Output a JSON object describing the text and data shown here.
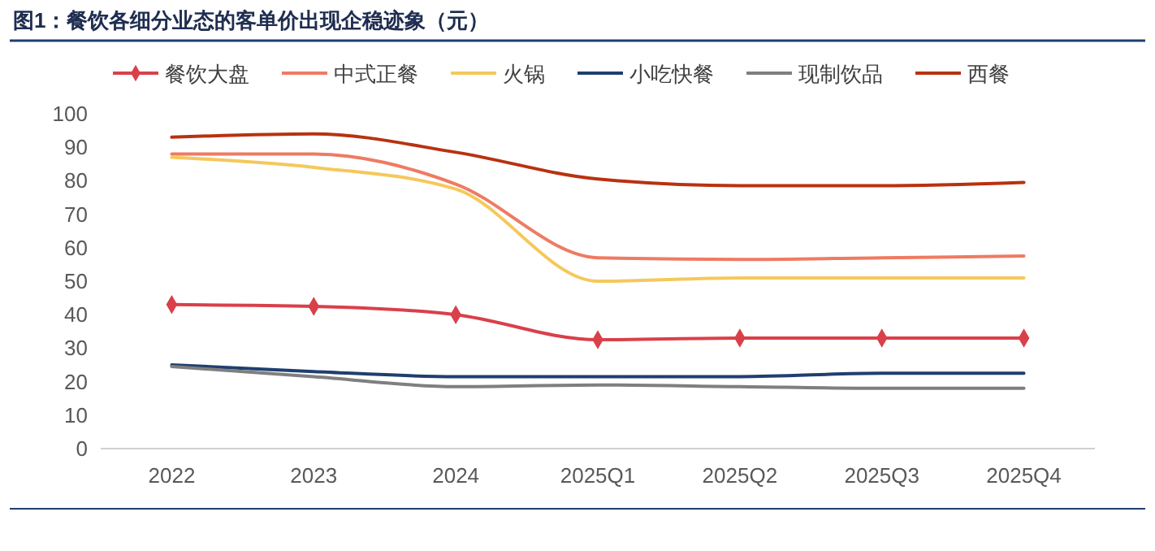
{
  "chart_data": {
    "type": "line",
    "title": "图1：餐饮各细分业态的客单价出现企稳迹象（元）",
    "categories": [
      "2022",
      "2023",
      "2024",
      "2025Q1",
      "2025Q2",
      "2025Q3",
      "2025Q4"
    ],
    "series": [
      {
        "name": "餐饮大盘",
        "color": "#d9404a",
        "marker": "diamond",
        "values": [
          43,
          42.5,
          40,
          32.5,
          33,
          33,
          33
        ]
      },
      {
        "name": "中式正餐",
        "color": "#ee7b62",
        "values": [
          88,
          88,
          79,
          57,
          56.5,
          57,
          57.5
        ]
      },
      {
        "name": "火锅",
        "color": "#f5c85c",
        "values": [
          87,
          84,
          77.5,
          50,
          51,
          51,
          51
        ]
      },
      {
        "name": "小吃快餐",
        "color": "#1f3f6e",
        "values": [
          25,
          23,
          21.5,
          21.5,
          21.5,
          22.5,
          22.5
        ]
      },
      {
        "name": "现制饮品",
        "color": "#7f7f7f",
        "values": [
          24.5,
          21.5,
          18.5,
          19,
          18.5,
          18,
          18
        ]
      },
      {
        "name": "西餐",
        "color": "#b83210",
        "values": [
          93,
          94,
          88.5,
          80.5,
          78.5,
          78.5,
          79.5
        ]
      }
    ],
    "ylim": [
      0,
      100
    ],
    "yticks": [
      0,
      10,
      20,
      30,
      40,
      50,
      60,
      70,
      80,
      90,
      100
    ],
    "grid": false,
    "legend": "top",
    "line_style": "solid"
  }
}
